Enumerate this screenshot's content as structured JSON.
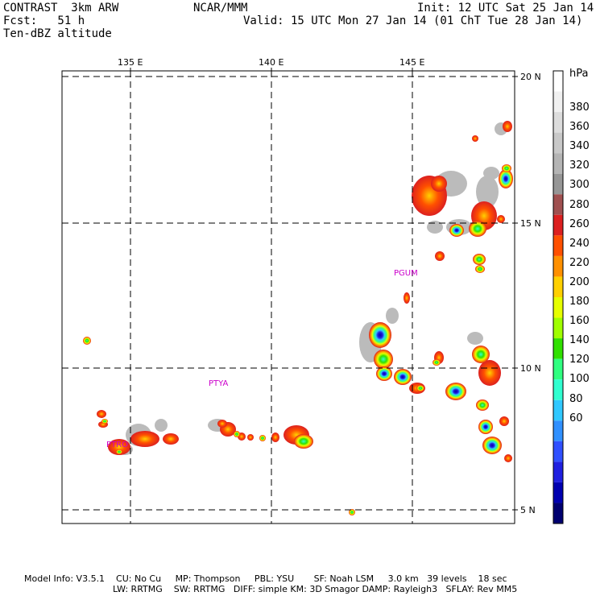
{
  "header": {
    "model": "CONTRAST  3km ARW",
    "org": "NCAR/MMM",
    "init": "Init: 12 UTC Sat 25 Jan 14",
    "fcst": "Fcst:   51 h",
    "valid": "Valid: 15 UTC Mon 27 Jan 14 (01 ChT Tue 28 Jan 14)",
    "field": "Ten-dBZ altitude"
  },
  "axes": {
    "lon_labels": [
      "135 E",
      "140 E",
      "145 E"
    ],
    "lat_labels": [
      "20 N",
      "15 N",
      "10 N",
      "5 N"
    ]
  },
  "stations": [
    {
      "name": "PGUM"
    },
    {
      "name": "PTYA"
    },
    {
      "name": "PTRO"
    }
  ],
  "colorbar": {
    "unit": "hPa",
    "labels": [
      "380",
      "360",
      "340",
      "320",
      "300",
      "280",
      "260",
      "240",
      "220",
      "200",
      "180",
      "160",
      "140",
      "120",
      "100",
      "80",
      "60"
    ],
    "colors": [
      "#ffffff",
      "#f0f0f0",
      "#dcdcdc",
      "#c8c8c8",
      "#b4b4b4",
      "#969696",
      "#a05050",
      "#dc2020",
      "#ff5000",
      "#ff9000",
      "#ffd000",
      "#e6ff00",
      "#a0ff00",
      "#30e000",
      "#30ff80",
      "#30ffd0",
      "#30c8ff",
      "#3090ff",
      "#3050ff",
      "#2020e0",
      "#0000b0",
      "#000070"
    ]
  },
  "footer": {
    "line1": "Model Info: V3.5.1    CU: No Cu     MP: Thompson     PBL: YSU       SF: Noah LSM     3.0 km   39 levels    18 sec",
    "line2": "LW: RRTMG    SW: RRTMG   DIFF: simple KM: 3D Smagor DAMP: Rayleigh3   SFLAY: Rev MM5"
  }
}
